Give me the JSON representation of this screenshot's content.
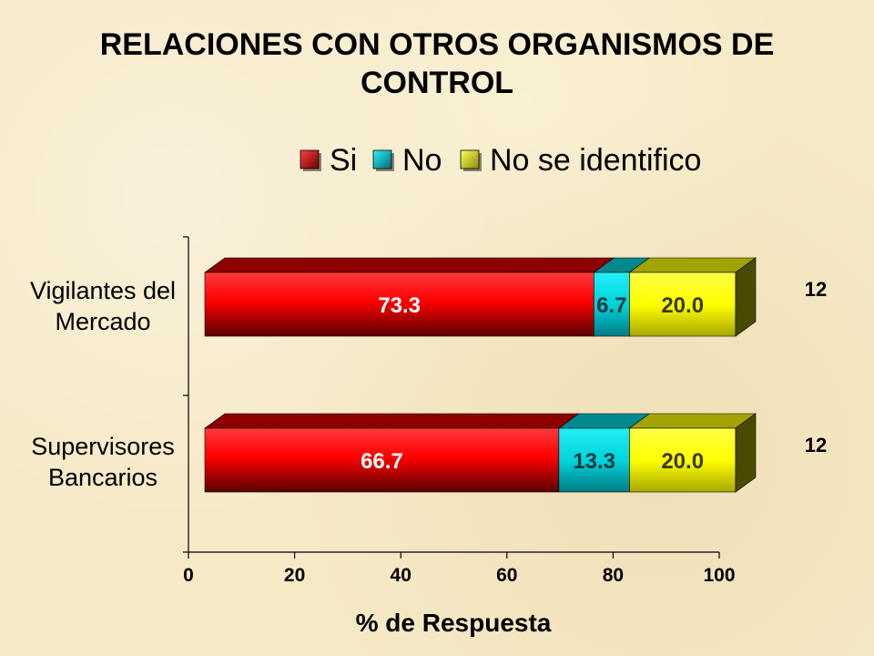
{
  "chart_data": {
    "type": "bar",
    "stacked": true,
    "orientation": "horizontal",
    "title": "RELACIONES CON OTROS ORGANISMOS DE CONTROL",
    "xlabel": "% de Respuesta",
    "ylabel": "",
    "xlim": [
      0,
      100
    ],
    "x_ticks": [
      "0",
      "20",
      "40",
      "60",
      "80",
      "100"
    ],
    "categories": [
      "Vigilantes del Mercado",
      "Supervisores Bancarios"
    ],
    "category_lines": [
      [
        "Vigilantes del",
        "Mercado"
      ],
      [
        "Supervisores",
        "Bancarios"
      ]
    ],
    "series": [
      {
        "name": "Si",
        "color": "#ff0000",
        "values": [
          73.3,
          66.7
        ],
        "labels": [
          "73.3",
          "66.7"
        ]
      },
      {
        "name": "No",
        "color": "#00e0ea",
        "values": [
          6.7,
          13.3
        ],
        "labels": [
          "6.7",
          "13.3"
        ]
      },
      {
        "name": "No se identifico",
        "color": "#ffff00",
        "values": [
          20.0,
          20.0
        ],
        "labels": [
          "20.0",
          "20.0"
        ]
      }
    ],
    "n_labels": [
      "12",
      "12"
    ],
    "legend_position": "top",
    "grid": false
  }
}
